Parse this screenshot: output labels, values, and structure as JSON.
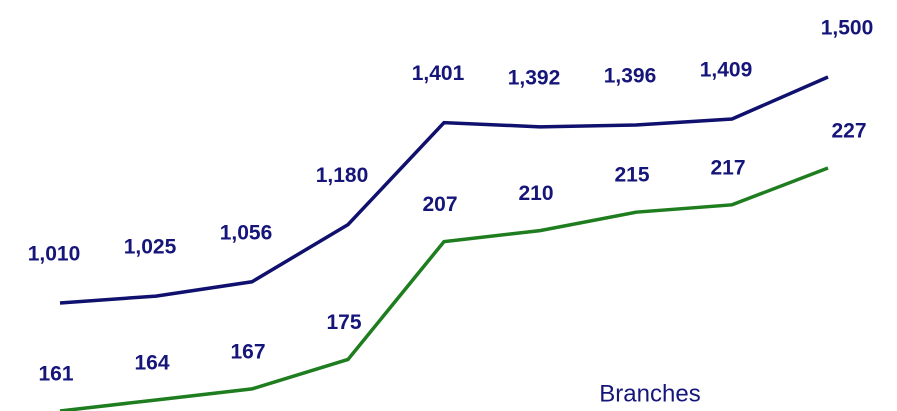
{
  "chart_data": {
    "type": "line",
    "series": [
      {
        "color": "#10106e",
        "values": [
          1010,
          1025,
          1056,
          1180,
          1401,
          1392,
          1396,
          1409,
          1500
        ],
        "value_labels": [
          "1,010",
          "1,025",
          "1,056",
          "1,180",
          "1,401",
          "1,392",
          "1,396",
          "1,409",
          "1,500"
        ]
      },
      {
        "name": "Branches",
        "color": "#1e7d1e",
        "values": [
          161,
          164,
          167,
          175,
          207,
          210,
          215,
          217,
          227
        ]
      }
    ],
    "label_color": "#15157a"
  }
}
